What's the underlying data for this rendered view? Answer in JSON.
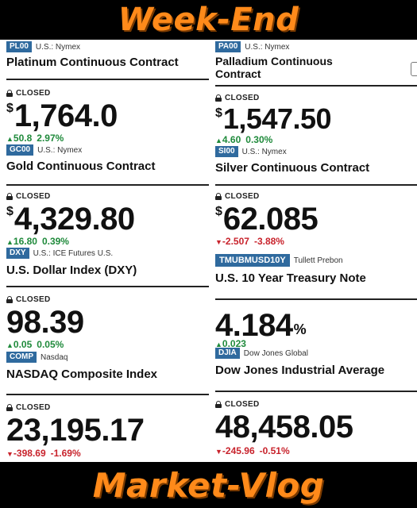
{
  "banner": {
    "top": "Week-End",
    "bottom": "Market-Vlog"
  },
  "closed_label": "CLOSED",
  "left": {
    "c0": {
      "ticker": "PL00",
      "exchange": "U.S.: Nymex",
      "name": "Platinum Continuous Contract"
    },
    "q1": {
      "currency": "$",
      "price": "1,764.0",
      "change": "50.8",
      "percent": "2.97%",
      "direction": "up"
    },
    "c1": {
      "ticker": "GC00",
      "exchange": "U.S.: Nymex",
      "name": "Gold Continuous Contract"
    },
    "q2": {
      "currency": "$",
      "price": "4,329.80",
      "change": "16.80",
      "percent": "0.39%",
      "direction": "up"
    },
    "c2": {
      "ticker": "DXY",
      "exchange": "U.S.: ICE Futures U.S.",
      "name": "U.S. Dollar Index (DXY)"
    },
    "q3": {
      "price": "98.39",
      "change": "0.05",
      "percent": "0.05%",
      "direction": "up"
    },
    "c3": {
      "ticker": "COMP",
      "exchange": "Nasdaq",
      "name": "NASDAQ Composite Index"
    },
    "q4": {
      "price": "23,195.17",
      "change": "-398.69",
      "percent": "-1.69%",
      "direction": "down"
    }
  },
  "right": {
    "c0": {
      "ticker": "PA00",
      "exchange": "U.S.: Nymex",
      "name": "Palladium Continuous Contract"
    },
    "q1": {
      "currency": "$",
      "price": "1,547.50",
      "change": "4.60",
      "percent": "0.30%",
      "direction": "up"
    },
    "c1": {
      "ticker": "SI00",
      "exchange": "U.S.: Nymex",
      "name": "Silver Continuous Contract"
    },
    "q2": {
      "currency": "$",
      "price": "62.085",
      "change": "-2.507",
      "percent": "-3.88%",
      "direction": "down"
    },
    "c2": {
      "ticker": "TMUBMUSD10Y",
      "exchange": "Tullett Prebon",
      "name": "U.S. 10 Year Treasury Note"
    },
    "q3": {
      "price": "4.184",
      "percent_sign": "%",
      "change": "0.023",
      "direction": "up"
    },
    "c3": {
      "ticker": "DJIA",
      "exchange": "Dow Jones Global",
      "name": "Dow Jones Industrial Average"
    },
    "q4": {
      "price": "48,458.05",
      "change": "-245.96",
      "percent": "-0.51%",
      "direction": "down"
    }
  },
  "colors": {
    "banner_text": "#ff8a1a",
    "tag": "#2f6a9e",
    "up": "#1f8a3b",
    "down": "#c8232c"
  }
}
